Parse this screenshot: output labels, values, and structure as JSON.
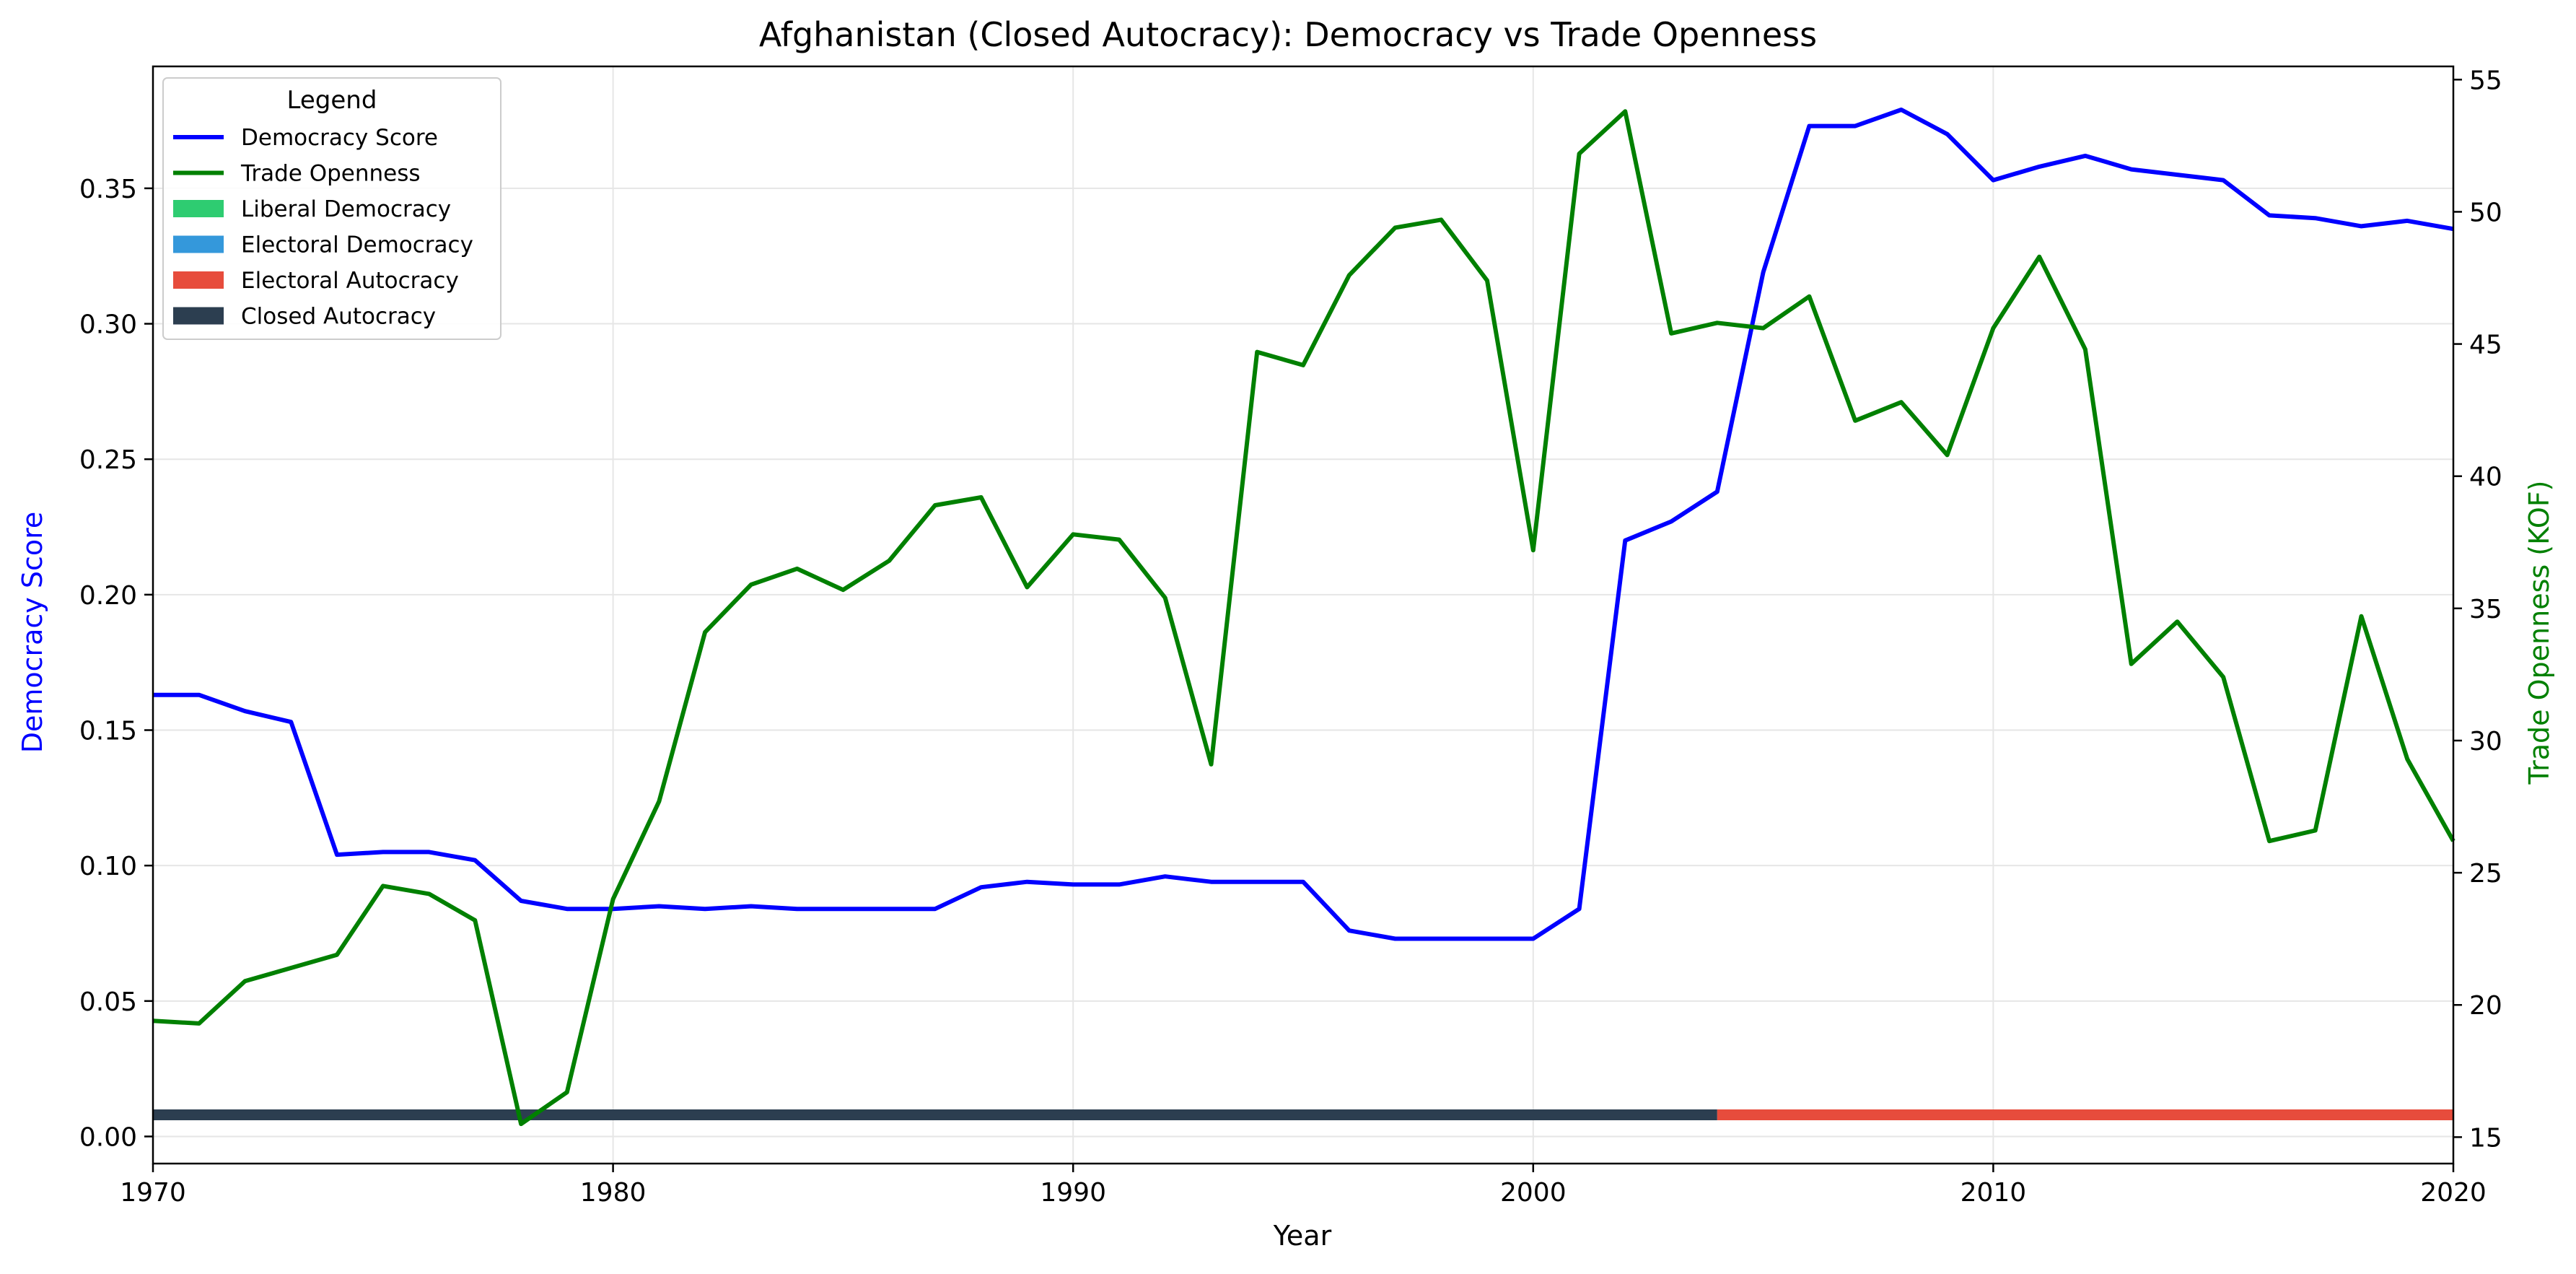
{
  "chart_data": {
    "type": "line",
    "title": "Afghanistan (Closed Autocracy): Democracy vs Trade Openness",
    "xlabel": "Year",
    "ylabel_left": "Democracy Score",
    "ylabel_right": "Trade Openness (KOF)",
    "xlim": [
      1970,
      2020
    ],
    "ylim_left": [
      -0.01,
      0.395
    ],
    "ylim_right": [
      14,
      55.5
    ],
    "x_ticks": [
      "1970",
      "1980",
      "1990",
      "2000",
      "2010",
      "2020"
    ],
    "y_left_ticks": [
      "0.00",
      "0.05",
      "0.10",
      "0.15",
      "0.20",
      "0.25",
      "0.30",
      "0.35"
    ],
    "y_right_ticks": [
      "15",
      "20",
      "25",
      "30",
      "35",
      "40",
      "45",
      "50",
      "55"
    ],
    "grid": true,
    "legend": {
      "title": "Legend",
      "placement": "top-left",
      "entries": [
        {
          "label": "Democracy Score",
          "kind": "line",
          "color": "#0000ff"
        },
        {
          "label": "Trade Openness",
          "kind": "line",
          "color": "#008000"
        },
        {
          "label": "Liberal Democracy",
          "kind": "patch",
          "color": "#2ecc71"
        },
        {
          "label": "Electoral Democracy",
          "kind": "patch",
          "color": "#3498db"
        },
        {
          "label": "Electoral Autocracy",
          "kind": "patch",
          "color": "#e74c3c"
        },
        {
          "label": "Closed Autocracy",
          "kind": "patch",
          "color": "#2c3e50"
        }
      ]
    },
    "x": [
      1970,
      1971,
      1972,
      1973,
      1974,
      1975,
      1976,
      1977,
      1978,
      1979,
      1980,
      1981,
      1982,
      1983,
      1984,
      1985,
      1986,
      1987,
      1988,
      1989,
      1990,
      1991,
      1992,
      1993,
      1994,
      1995,
      1996,
      1997,
      1998,
      1999,
      2000,
      2001,
      2002,
      2003,
      2004,
      2005,
      2006,
      2007,
      2008,
      2009,
      2010,
      2011,
      2012,
      2013,
      2014,
      2015,
      2016,
      2017,
      2018,
      2019,
      2020
    ],
    "series": [
      {
        "name": "Democracy Score",
        "axis": "left",
        "color": "#0000ff",
        "values": [
          0.163,
          0.163,
          0.157,
          0.153,
          0.104,
          0.105,
          0.105,
          0.102,
          0.087,
          0.084,
          0.084,
          0.085,
          0.084,
          0.085,
          0.084,
          0.084,
          0.084,
          0.084,
          0.092,
          0.094,
          0.093,
          0.093,
          0.096,
          0.094,
          0.094,
          0.094,
          0.076,
          0.073,
          0.073,
          0.073,
          0.073,
          0.084,
          0.22,
          0.227,
          0.238,
          0.319,
          0.373,
          0.373,
          0.379,
          0.37,
          0.353,
          0.358,
          0.362,
          0.357,
          0.355,
          0.353,
          0.34,
          0.339,
          0.336,
          0.338,
          0.335
        ]
      },
      {
        "name": "Trade Openness",
        "axis": "right",
        "color": "#008000",
        "values": [
          19.4,
          19.3,
          20.9,
          21.4,
          21.9,
          24.5,
          24.2,
          23.2,
          15.5,
          16.7,
          24.0,
          27.7,
          34.1,
          35.9,
          36.5,
          35.7,
          36.8,
          38.9,
          39.2,
          35.8,
          37.8,
          37.6,
          35.4,
          29.1,
          44.7,
          44.2,
          47.6,
          49.4,
          49.7,
          47.4,
          37.2,
          52.2,
          53.8,
          45.4,
          45.8,
          45.6,
          46.8,
          42.1,
          42.8,
          40.8,
          45.6,
          48.3,
          44.8,
          32.9,
          34.5,
          32.4,
          26.2,
          26.6,
          34.7,
          29.3,
          26.2
        ]
      }
    ],
    "regime_bar": {
      "y_value": 0.008,
      "segments": [
        {
          "regime": "Closed Autocracy",
          "from": 1970,
          "to": 2004,
          "color": "#2c3e50"
        },
        {
          "regime": "Electoral Autocracy",
          "from": 2004,
          "to": 2020,
          "color": "#e74c3c"
        }
      ]
    }
  }
}
